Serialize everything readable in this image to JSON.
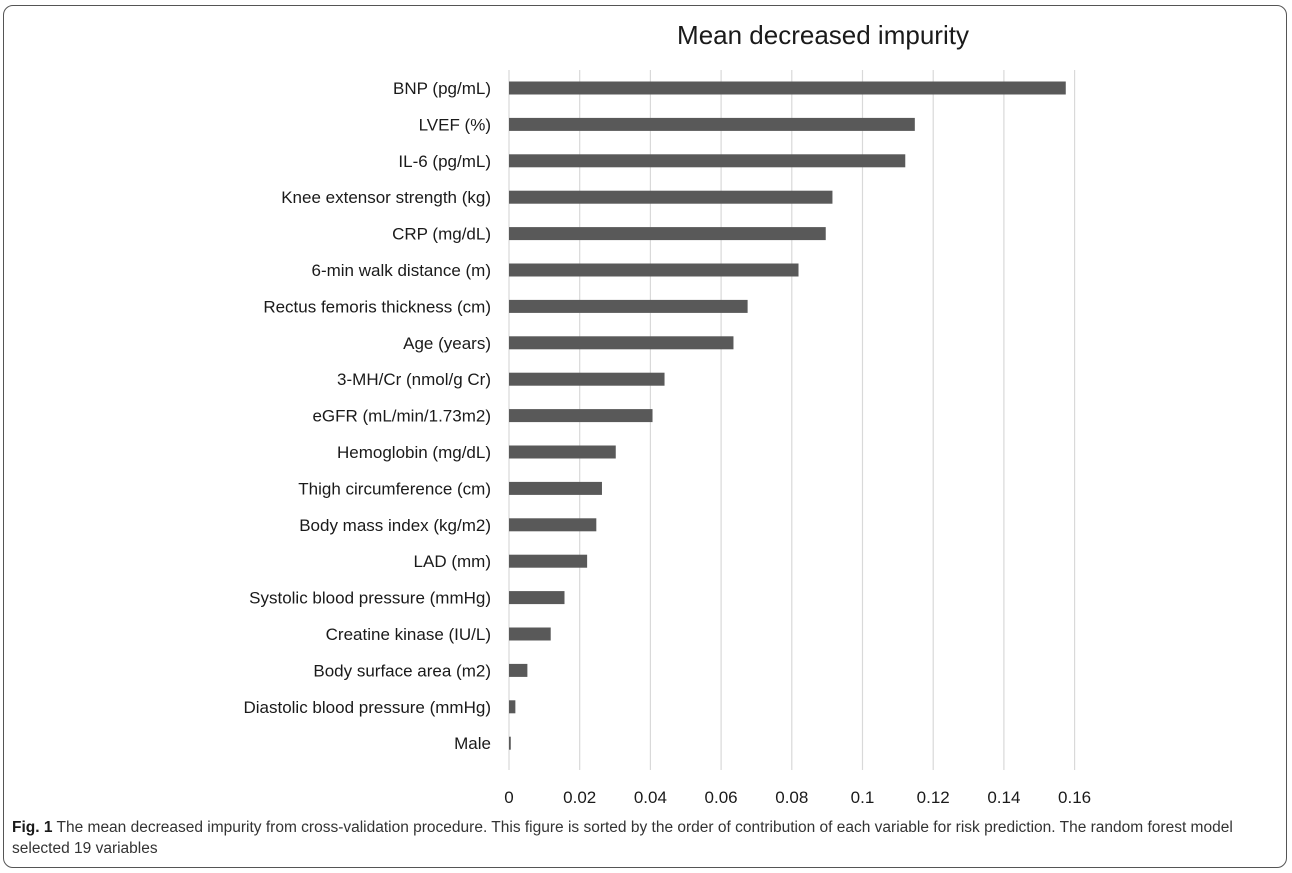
{
  "chart_data": {
    "type": "bar",
    "orientation": "horizontal",
    "title": "Mean decreased impurity",
    "xlabel": "",
    "ylabel": "",
    "xlim": [
      0,
      0.17
    ],
    "x_ticks": [
      "0",
      "0.02",
      "0.04",
      "0.06",
      "0.08",
      "0.1",
      "0.12",
      "0.14",
      "0.16"
    ],
    "x_tick_values": [
      0,
      0.02,
      0.04,
      0.06,
      0.08,
      0.1,
      0.12,
      0.14,
      0.16
    ],
    "grid": true,
    "bar_color": "#595959",
    "grid_color": "#d9d9d9",
    "categories": [
      "BNP (pg/mL)",
      "LVEF (%)",
      "IL-6 (pg/mL)",
      "Knee extensor strength (kg)",
      "CRP (mg/dL)",
      "6-min walk distance (m)",
      "Rectus femoris thickness (cm)",
      "Age (years)",
      "3-MH/Cr (nmol/g Cr)",
      "eGFR  (mL/min/1.73m2)",
      "Hemoglobin (mg/dL)",
      "Thigh circumference (cm)",
      "Body mass index (kg/m2)",
      "LAD (mm)",
      "Systolic blood pressure (mmHg)",
      "Creatine kinase (IU/L)",
      "Body surface area (m2)",
      "Diastolic blood pressure (mmHg)",
      "Male"
    ],
    "values": [
      0.1575,
      0.1148,
      0.1121,
      0.0915,
      0.0896,
      0.0819,
      0.0675,
      0.0635,
      0.044,
      0.0406,
      0.0302,
      0.0263,
      0.0247,
      0.0221,
      0.0157,
      0.0118,
      0.0052,
      0.0018,
      0.0005
    ]
  },
  "caption": {
    "fig_label": "Fig. 1",
    "text": " The mean decreased impurity from cross-validation procedure. This figure is sorted by the order of contribution of each variable for risk prediction. The random forest model selected 19 variables"
  }
}
